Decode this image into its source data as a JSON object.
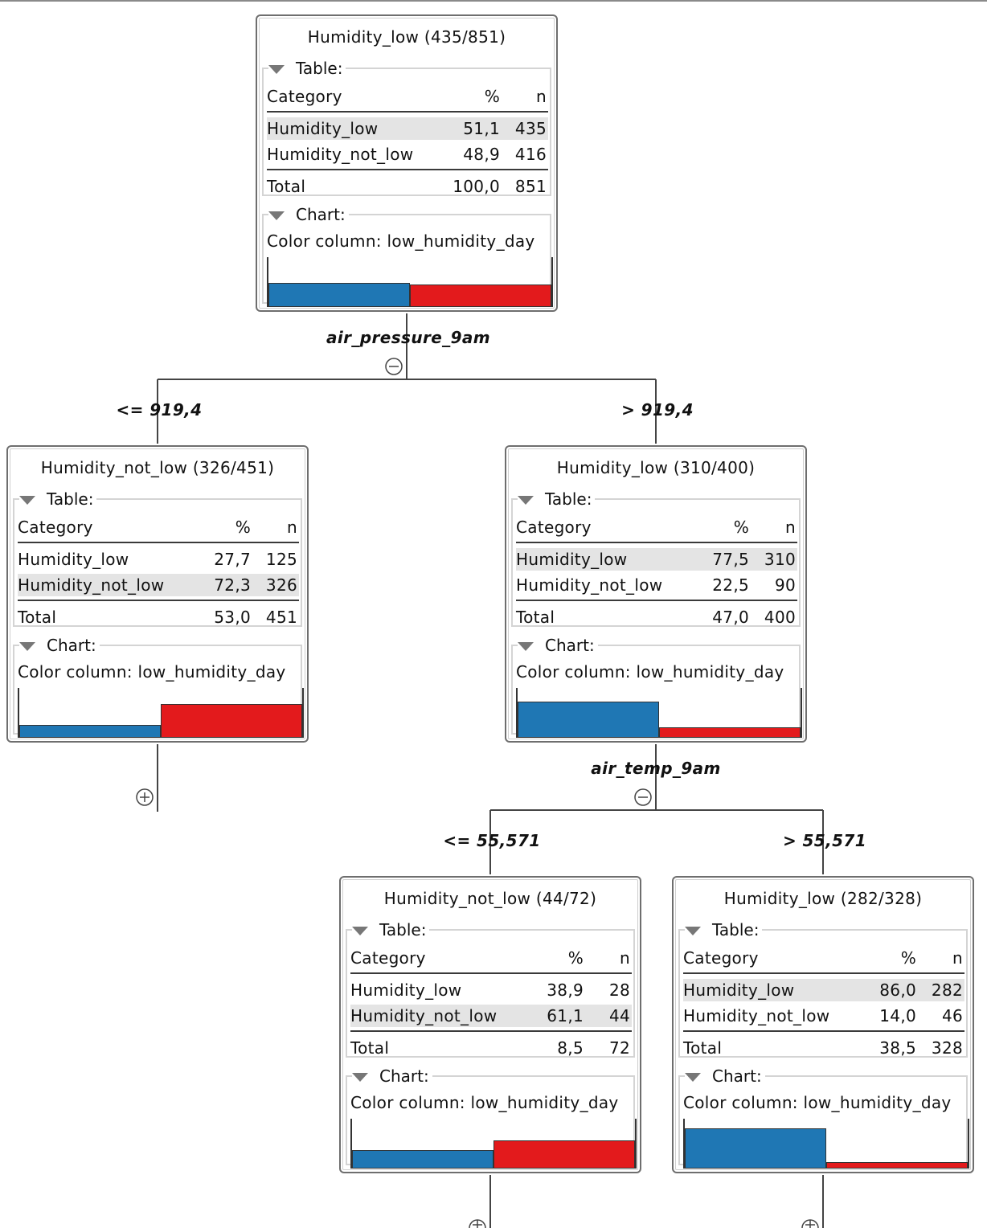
{
  "table_header": {
    "category": "Category",
    "pct": "%",
    "n": "n"
  },
  "section_labels": {
    "table": "Table:",
    "chart": "Chart:"
  },
  "nodes": [
    {
      "title": "Humidity_low (435/851)",
      "highlight_row": 0,
      "rows": [
        {
          "category": "Humidity_low",
          "pct": "51,1",
          "n": "435"
        },
        {
          "category": "Humidity_not_low",
          "pct": "48,9",
          "n": "416"
        }
      ],
      "total": {
        "label": "Total",
        "pct": "100,0",
        "n": "851"
      },
      "chart": {
        "color_column": "Color column: low_humidity_day",
        "blue_fraction": 0.511,
        "red_fraction": 0.489
      }
    },
    {
      "title": "Humidity_not_low (326/451)",
      "highlight_row": 1,
      "rows": [
        {
          "category": "Humidity_low",
          "pct": "27,7",
          "n": "125"
        },
        {
          "category": "Humidity_not_low",
          "pct": "72,3",
          "n": "326"
        }
      ],
      "total": {
        "label": "Total",
        "pct": "53,0",
        "n": "451"
      },
      "chart": {
        "color_column": "Color column: low_humidity_day",
        "blue_fraction": 0.277,
        "red_fraction": 0.723
      }
    },
    {
      "title": "Humidity_low (310/400)",
      "highlight_row": 0,
      "rows": [
        {
          "category": "Humidity_low",
          "pct": "77,5",
          "n": "310"
        },
        {
          "category": "Humidity_not_low",
          "pct": "22,5",
          "n": "90"
        }
      ],
      "total": {
        "label": "Total",
        "pct": "47,0",
        "n": "400"
      },
      "chart": {
        "color_column": "Color column: low_humidity_day",
        "blue_fraction": 0.775,
        "red_fraction": 0.225
      }
    },
    {
      "title": "Humidity_not_low (44/72)",
      "highlight_row": 1,
      "rows": [
        {
          "category": "Humidity_low",
          "pct": "38,9",
          "n": "28"
        },
        {
          "category": "Humidity_not_low",
          "pct": "61,1",
          "n": "44"
        }
      ],
      "total": {
        "label": "Total",
        "pct": "8,5",
        "n": "72"
      },
      "chart": {
        "color_column": "Color column: low_humidity_day",
        "blue_fraction": 0.389,
        "red_fraction": 0.611
      }
    },
    {
      "title": "Humidity_low (282/328)",
      "highlight_row": 0,
      "rows": [
        {
          "category": "Humidity_low",
          "pct": "86,0",
          "n": "282"
        },
        {
          "category": "Humidity_not_low",
          "pct": "14,0",
          "n": "46"
        }
      ],
      "total": {
        "label": "Total",
        "pct": "38,5",
        "n": "328"
      },
      "chart": {
        "color_column": "Color column: low_humidity_day",
        "blue_fraction": 0.86,
        "red_fraction": 0.14
      }
    }
  ],
  "splits": [
    {
      "attribute": "air_pressure_9am",
      "left_condition": "<= 919,4",
      "right_condition": "> 919,4"
    },
    {
      "attribute": "air_temp_9am",
      "left_condition": "<= 55,571",
      "right_condition": "> 55,571"
    }
  ],
  "colors": {
    "blue": "#1f77b4",
    "red": "#e31a1c"
  },
  "icons": {
    "collapse": "collapse-minus-icon",
    "expand": "expand-plus-icon"
  }
}
